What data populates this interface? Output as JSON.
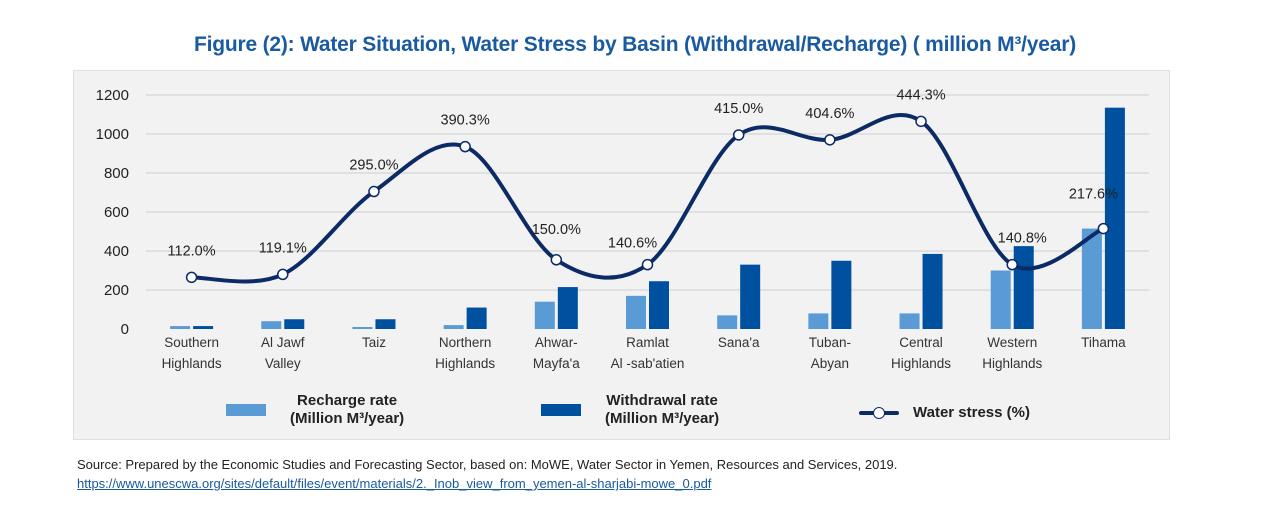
{
  "title": "Figure (2): Water Situation, Water Stress by Basin (Withdrawal/Recharge) ( million M³/year)",
  "legend": {
    "recharge_line1": "Recharge rate",
    "recharge_line2": "(Million M³/year)",
    "withdrawal_line1": "Withdrawal rate",
    "withdrawal_line2": "(Million M³/year)",
    "stress": "Water stress (%)"
  },
  "source": "Source: Prepared by the Economic Studies and Forecasting Sector, based on: MoWE, Water Sector in Yemen, Resources and Services, 2019.",
  "link": "https://www.unescwa.org/sites/default/files/event/materials/2._Inob_view_from_yemen-al-sharjabi-mowe_0.pdf",
  "colors": {
    "recharge": "#5b9bd5",
    "withdrawal": "#0050a0",
    "stress_line": "#0b2a66",
    "title": "#1a5aa0"
  },
  "chart_data": {
    "type": "bar",
    "title": "Figure (2): Water Situation, Water Stress by Basin (Withdrawal/Recharge) ( million M³/year)",
    "xlabel": "",
    "ylabel": "",
    "ylim": [
      0,
      1200
    ],
    "yticks": [
      "0",
      "200",
      "400",
      "600",
      "800",
      "1000",
      "1200"
    ],
    "grid": true,
    "legend_position": "bottom",
    "categories": [
      [
        "Southern",
        "Highlands"
      ],
      [
        "Al Jawf",
        "Valley"
      ],
      [
        "Taiz"
      ],
      [
        "Northern",
        "Highlands"
      ],
      [
        "Ahwar-",
        "Mayfa'a"
      ],
      [
        "Ramlat",
        "Al -sab'atien"
      ],
      [
        "Sana'a"
      ],
      [
        "Tuban-",
        "Abyan"
      ],
      [
        "Central",
        "Highlands"
      ],
      [
        "Western",
        "Highlands"
      ],
      [
        "Tihama"
      ]
    ],
    "series": [
      {
        "name": "Recharge rate (Million M³/year)",
        "type": "bar",
        "values": [
          15,
          40,
          10,
          20,
          140,
          170,
          70,
          80,
          80,
          300,
          515
        ]
      },
      {
        "name": "Withdrawal rate (Million M³/year)",
        "type": "bar",
        "values": [
          15,
          50,
          50,
          110,
          215,
          245,
          330,
          350,
          385,
          425,
          1135
        ]
      },
      {
        "name": "Water stress (%)",
        "type": "line",
        "plot_positions": [
          265,
          280,
          705,
          935,
          355,
          330,
          995,
          970,
          1065,
          330,
          515
        ],
        "labels": [
          "112.0%",
          "119.1%",
          "295.0%",
          "390.3%",
          "150.0%",
          "140.6%",
          "415.0%",
          "404.6%",
          "444.3%",
          "140.8%",
          "217.6%"
        ]
      }
    ]
  }
}
